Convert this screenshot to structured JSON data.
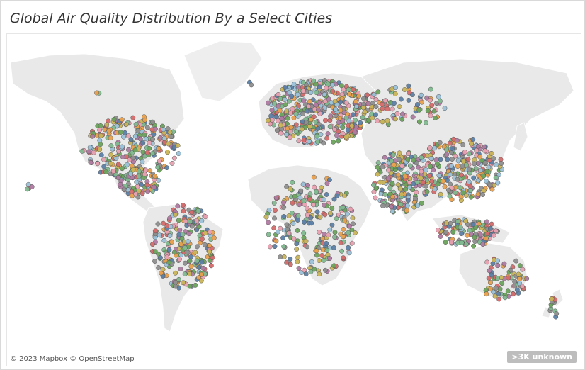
{
  "title": "Global Air Quality Distribution By a Select Cities",
  "map": {
    "attribution": "© 2023 Mapbox © OpenStreetMap",
    "unknown_badge": ">3K unknown",
    "background_color": "#ffffff",
    "land_color": "#e9e9e9",
    "marker_colors": [
      "#e8a0b0",
      "#6aa35c",
      "#5c7fa6",
      "#d46a6a",
      "#e8a04c",
      "#9bc2d9",
      "#b07aa1",
      "#8f8f8f",
      "#c9b458",
      "#7fb98f"
    ]
  }
}
